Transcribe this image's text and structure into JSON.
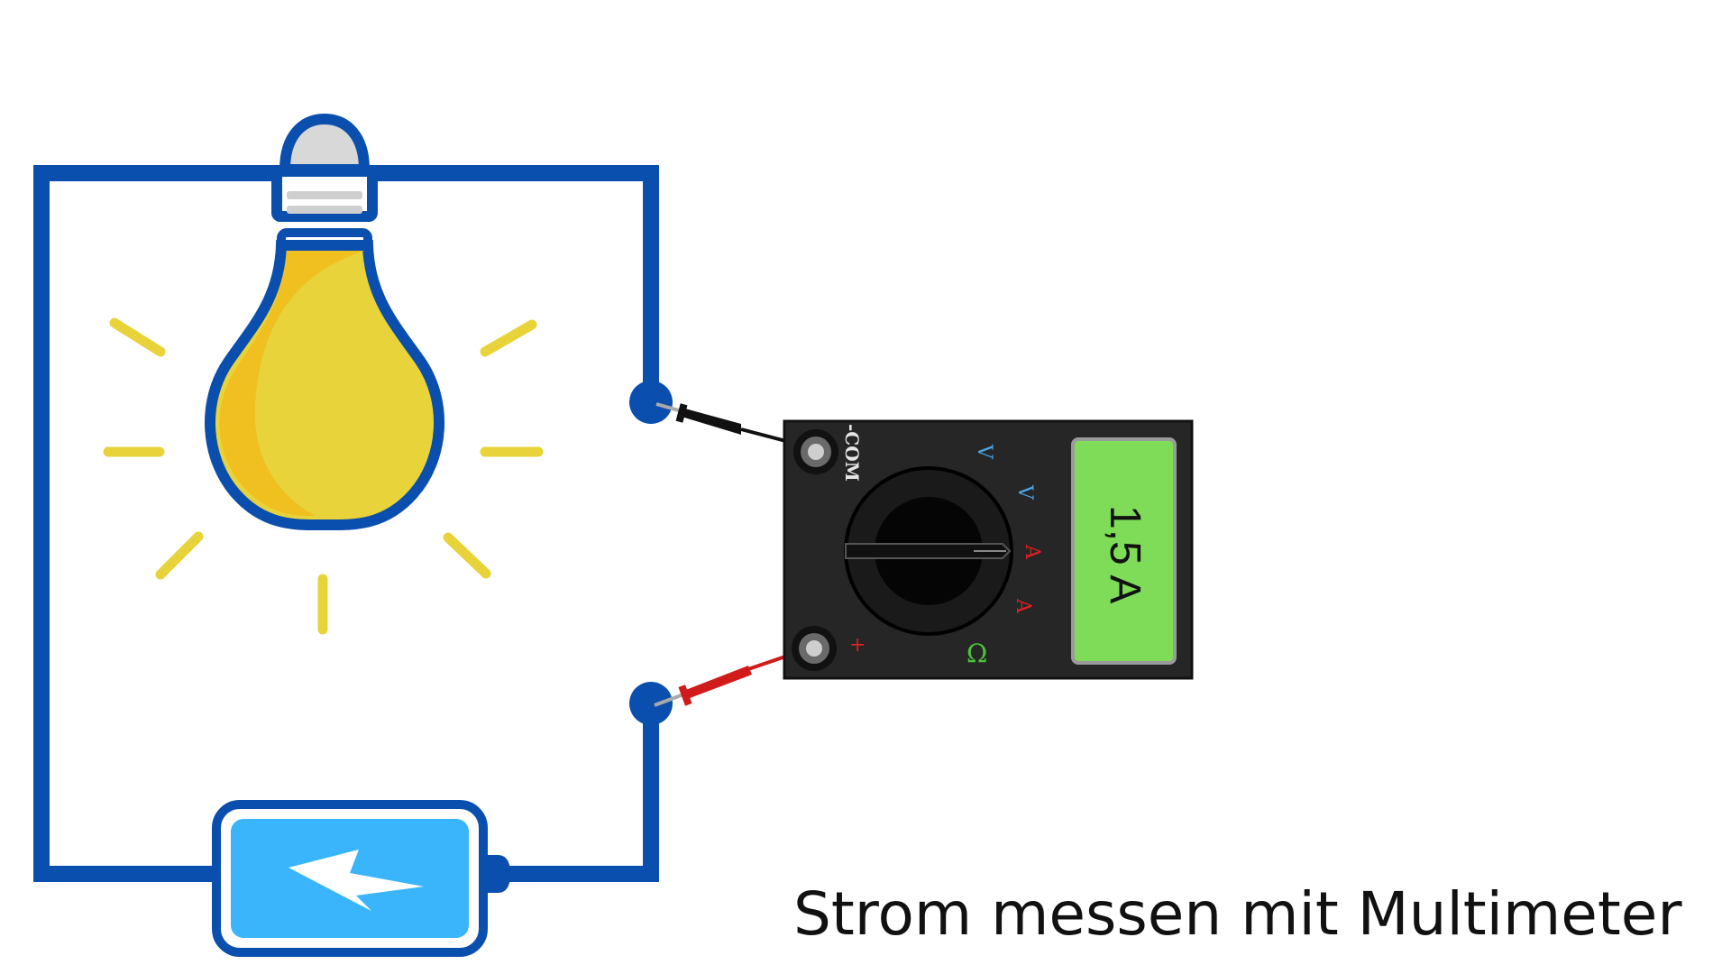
{
  "caption": "Strom messen mit Multimeter",
  "multimeter": {
    "display_value": "1,5 A",
    "terminal_com_label": "-COM",
    "terminal_plus_label": "+",
    "dial_labels": [
      "V",
      "V",
      "A",
      "A",
      "Ω"
    ]
  },
  "colors": {
    "wire": "#0a4fad",
    "bulb_glass": "#e8d43a",
    "bulb_shade": "#f0c021",
    "glow_rays": "#e8d43a",
    "battery_body": "#3ab5fb",
    "multimeter_body": "#262626",
    "lcd_screen": "#7fdc58",
    "probe_black": "#111111",
    "probe_red": "#d11a1a",
    "label_blue": "#4aa6e8",
    "label_red": "#e02020",
    "label_green": "#4cc43a"
  },
  "icons": [
    "light-bulb-icon",
    "battery-icon",
    "lightning-bolt-icon",
    "multimeter-icon",
    "rotary-dial-icon",
    "test-probe-icon"
  ]
}
